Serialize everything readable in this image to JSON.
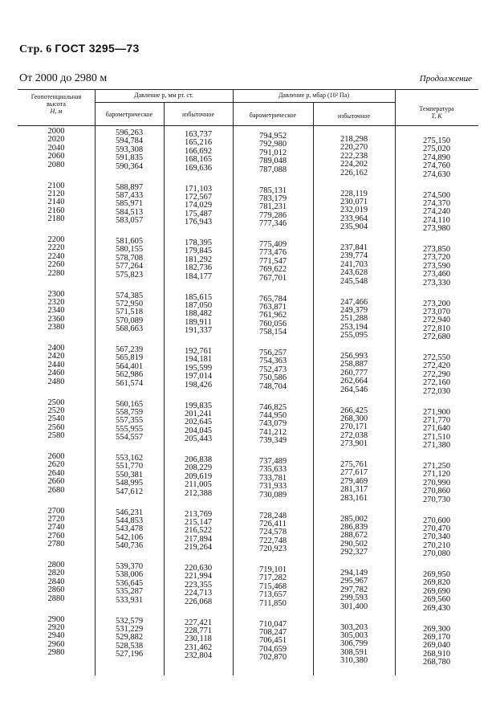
{
  "page_header": {
    "page": "Стр. 6",
    "standard": "ГОСТ 3295—73"
  },
  "range_title": "От 2000 до 2980 м",
  "continuation": "Продолжение",
  "table": {
    "headers": {
      "height": [
        "Геопотенциальная",
        "высота",
        "H, м"
      ],
      "pressure_mm": "Давление p, мм рт. ст.",
      "pressure_mbar": "Давление p, мбар (10² Па)",
      "barometric": "барометрическое",
      "excess": "избыточное",
      "temperature": [
        "Температура",
        "T, К"
      ]
    },
    "blocks": [
      {
        "H": [
          "2000",
          "2020",
          "2040",
          "2060",
          "2080"
        ],
        "mm_baro": [
          "596,263",
          "594,784",
          "593,308",
          "591,835",
          "590,364"
        ],
        "mm_excess": [
          "163,737",
          "165,216",
          "166,692",
          "168,165",
          "169,636"
        ],
        "mbar_baro": [
          "794,952",
          "792,980",
          "791,012",
          "789,048",
          "787,088"
        ],
        "mbar_excess": [
          "218,298",
          "220,270",
          "222,238",
          "224,202",
          "226,162"
        ],
        "T": [
          "275,150",
          "275,020",
          "274,890",
          "274,760",
          "274,630"
        ]
      },
      {
        "H": [
          "2100",
          "2120",
          "2140",
          "2160",
          "2180"
        ],
        "mm_baro": [
          "588,897",
          "587,433",
          "585,971",
          "584,513",
          "583,057"
        ],
        "mm_excess": [
          "171,103",
          "172,567",
          "174,029",
          "175,487",
          "176,943"
        ],
        "mbar_baro": [
          "785,131",
          "783,179",
          "781,231",
          "779,286",
          "777,346"
        ],
        "mbar_excess": [
          "228,119",
          "230,071",
          "232,019",
          "233,964",
          "235,904"
        ],
        "T": [
          "274,500",
          "274,370",
          "274,240",
          "274,110",
          "273,980"
        ]
      },
      {
        "H": [
          "2200",
          "2220",
          "2240",
          "2260",
          "2280"
        ],
        "mm_baro": [
          "581,605",
          "580,155",
          "578,708",
          "577,264",
          "575,823"
        ],
        "mm_excess": [
          "178,395",
          "179,845",
          "181,292",
          "182,736",
          "184,177"
        ],
        "mbar_baro": [
          "775,409",
          "773,476",
          "771,547",
          "769,622",
          "767,701"
        ],
        "mbar_excess": [
          "237,841",
          "239,774",
          "241,703",
          "243,628",
          "245,548"
        ],
        "T": [
          "273,850",
          "273,720",
          "273,590",
          "273,460",
          "273,330"
        ]
      },
      {
        "H": [
          "2300",
          "2320",
          "2340",
          "2360",
          "2380"
        ],
        "mm_baro": [
          "574,385",
          "572,950",
          "571,518",
          "570,089",
          "568,663"
        ],
        "mm_excess": [
          "185,615",
          "187,050",
          "188,482",
          "189,911",
          "191,337"
        ],
        "mbar_baro": [
          "765,784",
          "763,871",
          "761,962",
          "760,056",
          "758,154"
        ],
        "mbar_excess": [
          "247,466",
          "249,379",
          "251,288",
          "253,194",
          "255,095"
        ],
        "T": [
          "273,200",
          "273,070",
          "272,940",
          "272,810",
          "272,680"
        ]
      },
      {
        "H": [
          "2400",
          "2420",
          "2440",
          "2460",
          "2480"
        ],
        "mm_baro": [
          "567,239",
          "565,819",
          "564,401",
          "562,986",
          "561,574"
        ],
        "mm_excess": [
          "192,761",
          "194,181",
          "195,599",
          "197,014",
          "198,426"
        ],
        "mbar_baro": [
          "756,257",
          "754,363",
          "752,473",
          "750,586",
          "748,704"
        ],
        "mbar_excess": [
          "256,993",
          "258,887",
          "260,777",
          "262,664",
          "264,546"
        ],
        "T": [
          "272,550",
          "272,420",
          "272,290",
          "272,160",
          "272,030"
        ]
      },
      {
        "H": [
          "2500",
          "2520",
          "2540",
          "2560",
          "2580"
        ],
        "mm_baro": [
          "560,165",
          "558,759",
          "557,355",
          "555,955",
          "554,557"
        ],
        "mm_excess": [
          "199,835",
          "201,241",
          "202,645",
          "204,045",
          "205,443"
        ],
        "mbar_baro": [
          "746,825",
          "744,950",
          "743,079",
          "741,212",
          "739,349"
        ],
        "mbar_excess": [
          "266,425",
          "268,300",
          "270,171",
          "272,038",
          "273,901"
        ],
        "T": [
          "271,900",
          "271,770",
          "271,640",
          "271,510",
          "271,380"
        ]
      },
      {
        "H": [
          "2600",
          "2620",
          "2640",
          "2660",
          "2680"
        ],
        "mm_baro": [
          "553,162",
          "551,770",
          "550,381",
          "548,995",
          "547,612"
        ],
        "mm_excess": [
          "206,838",
          "208,229",
          "209,619",
          "211,005",
          "212,388"
        ],
        "mbar_baro": [
          "737,489",
          "735,633",
          "733,781",
          "731,933",
          "730,089"
        ],
        "mbar_excess": [
          "275,761",
          "277,617",
          "279,469",
          "281,317",
          "283,161"
        ],
        "T": [
          "271,250",
          "271,120",
          "270,990",
          "270,860",
          "270,730"
        ]
      },
      {
        "H": [
          "2700",
          "2720",
          "2740",
          "2760",
          "2780"
        ],
        "mm_baro": [
          "546,231",
          "544,853",
          "543,478",
          "542,106",
          "540,736"
        ],
        "mm_excess": [
          "213,769",
          "215,147",
          "216,522",
          "217,894",
          "219,264"
        ],
        "mbar_baro": [
          "728,248",
          "726,411",
          "724,578",
          "722,748",
          "720,923"
        ],
        "mbar_excess": [
          "285,002",
          "286,839",
          "288,672",
          "290,502",
          "292,327"
        ],
        "T": [
          "270,600",
          "270,470",
          "270,340",
          "270,210",
          "270,080"
        ]
      },
      {
        "H": [
          "2800",
          "2820",
          "2840",
          "2860",
          "2880"
        ],
        "mm_baro": [
          "539,370",
          "538,006",
          "536,645",
          "535,287",
          "533,931"
        ],
        "mm_excess": [
          "220,630",
          "221,994",
          "223,355",
          "224,713",
          "226,068"
        ],
        "mbar_baro": [
          "719,101",
          "717,282",
          "715,468",
          "713,657",
          "711,850"
        ],
        "mbar_excess": [
          "294,149",
          "295,967",
          "297,782",
          "299,593",
          "301,400"
        ],
        "T": [
          "269,950",
          "269,820",
          "269,690",
          "269,560",
          "269,430"
        ]
      },
      {
        "H": [
          "2900",
          "2920",
          "2940",
          "2960",
          "2980"
        ],
        "mm_baro": [
          "532,579",
          "531,229",
          "529,882",
          "528,538",
          "527,196"
        ],
        "mm_excess": [
          "227,421",
          "228,771",
          "230,118",
          "231,462",
          "232,804"
        ],
        "mbar_baro": [
          "710,047",
          "708,247",
          "706,451",
          "704,659",
          "702,870"
        ],
        "mbar_excess": [
          "303,203",
          "305,003",
          "306,799",
          "308,591",
          "310,380"
        ],
        "T": [
          "269,300",
          "269,170",
          "269,040",
          "268,910",
          "268,780"
        ]
      }
    ]
  }
}
